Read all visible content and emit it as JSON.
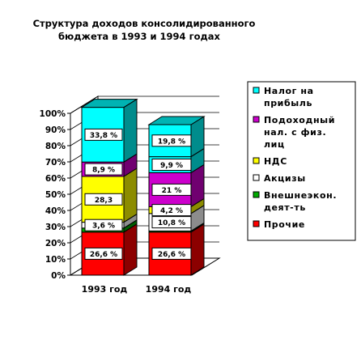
{
  "chart_data": {
    "type": "bar",
    "stacked": true,
    "percent_stacked": true,
    "three_d": true,
    "title_lines": [
      "Структура доходов консолидированного",
      "бюджета в 1993 и 1994 годах"
    ],
    "categories": [
      "1993 год",
      "1994 год"
    ],
    "ylim": [
      0,
      100
    ],
    "y_ticks": [
      "0%",
      "10%",
      "20%",
      "30%",
      "40%",
      "50%",
      "60%",
      "70%",
      "80%",
      "90%",
      "100%"
    ],
    "grid": true,
    "legend_position": "right",
    "series": [
      {
        "name": "Прочие",
        "color": "#ff0000",
        "values": [
          26.6,
          26.6
        ],
        "labels": [
          "26,6 %",
          "26,6 %"
        ]
      },
      {
        "name": "Внешнеэкон. деят-ть",
        "color": "#00aa00",
        "values": [
          2.5,
          0.7
        ],
        "labels": [
          "",
          ""
        ]
      },
      {
        "name": "Акцизы",
        "color": "#ffffff",
        "values": [
          3.6,
          10.8
        ],
        "labels": [
          "3,6 %",
          "10,8 %"
        ]
      },
      {
        "name": "НДС",
        "color": "#ffff00",
        "values": [
          28.3,
          4.2
        ],
        "labels": [
          "28,3",
          "4,2 %"
        ]
      },
      {
        "name": "Подоходный нал. с физ. лиц",
        "color": "#cc00cc",
        "values": [
          8.9,
          21
        ],
        "labels": [
          "8,9 %",
          "21 %"
        ]
      },
      {
        "name": "Налог на прибыль",
        "color": "#00ffff",
        "values": [
          33.8,
          9.9
        ],
        "labels": [
          "33,8 %",
          "9,9 %"
        ]
      },
      {
        "name": "",
        "color": "#00ffff",
        "values": [
          0,
          19.8
        ],
        "labels": [
          "",
          "19,8 %"
        ]
      }
    ],
    "legend": [
      {
        "lines": [
          "Налог на",
          "прибыль"
        ],
        "color": "#00ffff"
      },
      {
        "lines": [
          "Подоходный",
          "нал. с физ.",
          "лиц"
        ],
        "color": "#cc00cc"
      },
      {
        "lines": [
          "НДС"
        ],
        "color": "#ffff00"
      },
      {
        "lines": [
          "Акцизы"
        ],
        "color": "#ffffff"
      },
      {
        "lines": [
          "Внешнеэкон.",
          "деят-ть"
        ],
        "color": "#00aa00"
      },
      {
        "lines": [
          "Прочие"
        ],
        "color": "#ff0000"
      }
    ]
  }
}
